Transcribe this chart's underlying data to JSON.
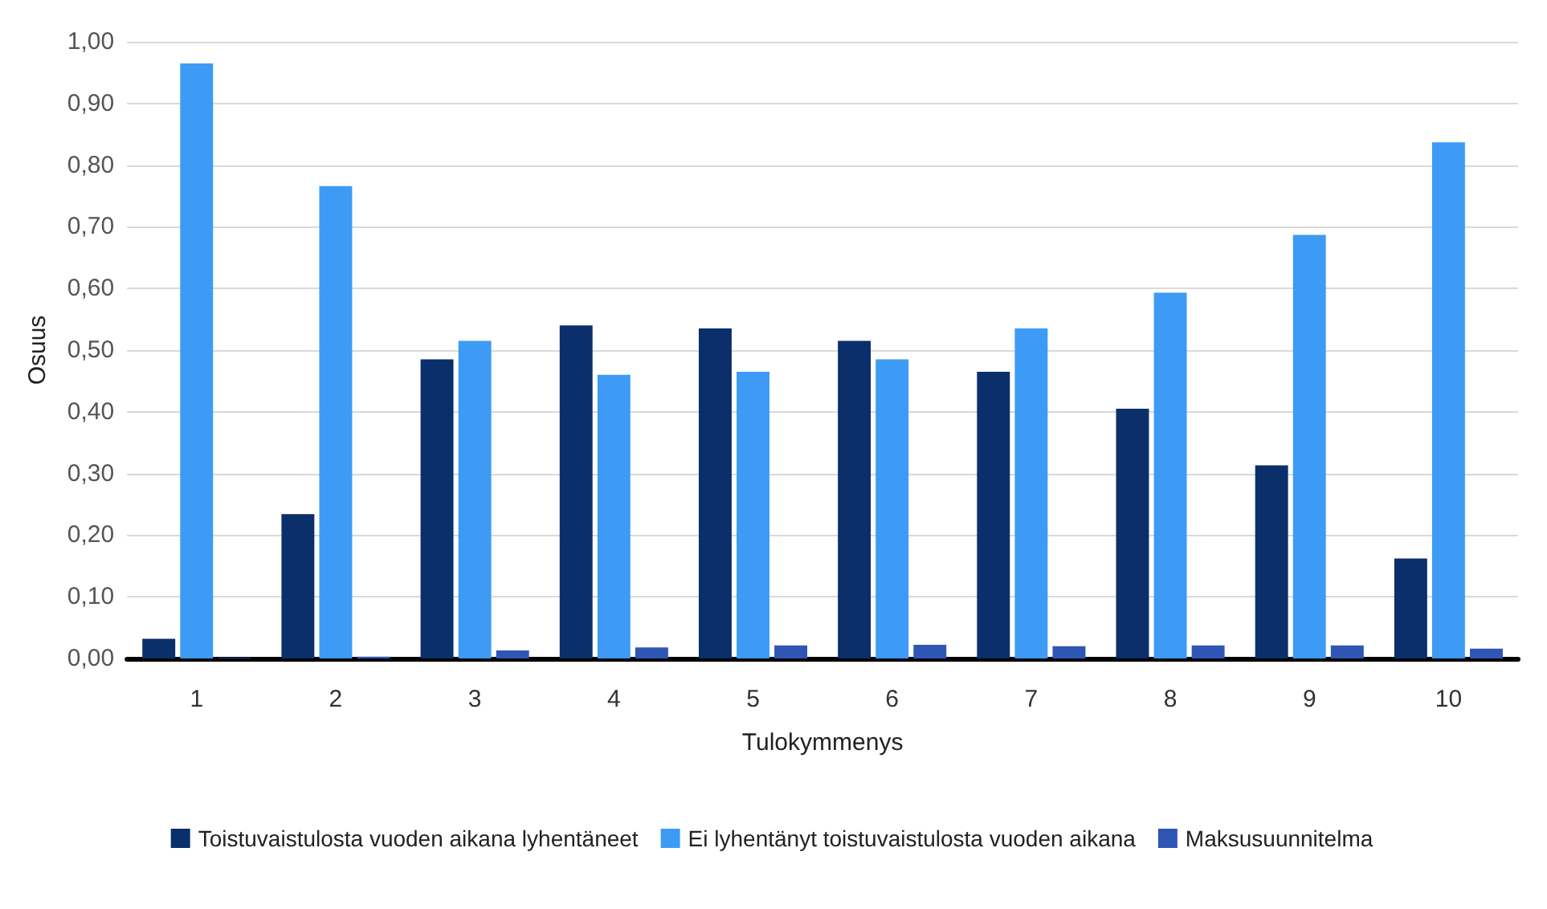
{
  "chart_data": {
    "type": "bar",
    "xlabel": "Tulokymmenys",
    "ylabel": "Osuus",
    "categories": [
      "1",
      "2",
      "3",
      "4",
      "5",
      "6",
      "7",
      "8",
      "9",
      "10"
    ],
    "series": [
      {
        "name": "Toistuvaistulosta vuoden aikana lyhentäneet",
        "color": "#0a2f6b",
        "values": [
          0.032,
          0.234,
          0.485,
          0.54,
          0.535,
          0.515,
          0.465,
          0.405,
          0.313,
          0.162
        ]
      },
      {
        "name": "Ei lyhentänyt toistuvaistulosta vuoden aikana",
        "color": "#3d9bf5",
        "values": [
          0.965,
          0.766,
          0.515,
          0.46,
          0.465,
          0.485,
          0.535,
          0.593,
          0.687,
          0.837
        ]
      },
      {
        "name": "Maksusuunnitelma",
        "color": "#2f56b5",
        "values": [
          0.001,
          0.003,
          0.013,
          0.018,
          0.021,
          0.022,
          0.02,
          0.021,
          0.021,
          0.016
        ]
      }
    ],
    "ylim": [
      0,
      1
    ],
    "yticks": [
      {
        "value": 0,
        "label": "0,00"
      },
      {
        "value": 0.1,
        "label": "0,10"
      },
      {
        "value": 0.2,
        "label": "0,20"
      },
      {
        "value": 0.3,
        "label": "0,30"
      },
      {
        "value": 0.4,
        "label": "0,40"
      },
      {
        "value": 0.5,
        "label": "0,50"
      },
      {
        "value": 0.6,
        "label": "0,60"
      },
      {
        "value": 0.7,
        "label": "0,70"
      },
      {
        "value": 0.8,
        "label": "0,80"
      },
      {
        "value": 0.9,
        "label": "0,90"
      },
      {
        "value": 1,
        "label": "1,00"
      }
    ],
    "grid": "y",
    "legend": "bottom"
  }
}
